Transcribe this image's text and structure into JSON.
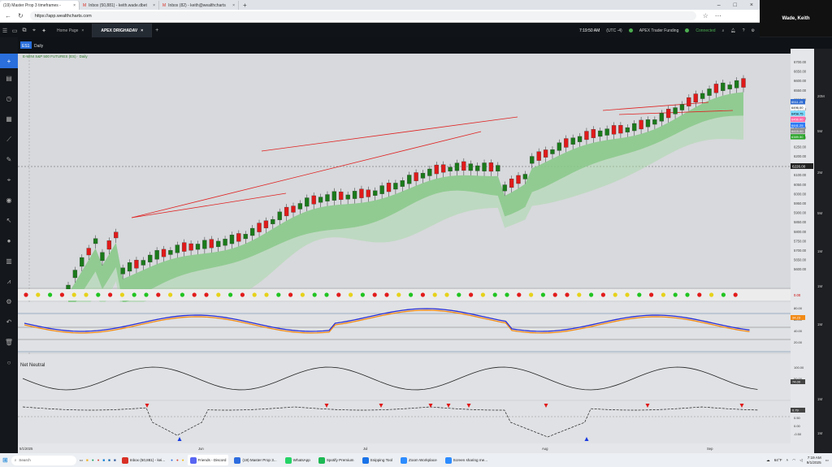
{
  "browser": {
    "tabs": [
      {
        "label": "(19) Master Prop 3 timeframes -",
        "active": true
      },
      {
        "label": "Inbox (50,881) - keith.wade.dbet",
        "active": false
      },
      {
        "label": "Inbox (82) - keith@wealthcharts",
        "active": false
      }
    ],
    "url": "https://app.wealthcharts.com"
  },
  "video_overlay": {
    "name": "Wade, Keith"
  },
  "app": {
    "tabs": [
      "Home Page",
      "APEX DRIGHADAV"
    ],
    "time": "7:19:50 AM",
    "timezone": "(UTC -4)",
    "status_funding": "APEX Trader Funding",
    "status_connected": "Connected"
  },
  "chart": {
    "symbol": "ES1",
    "timeframe": "Daily",
    "title": "E-MINI S&P 500 FUTURES (ES) · Daily",
    "panel_labels": {
      "net_neutral": "Net Neutral"
    },
    "price_axis": [
      "6700.00",
      "6650.00",
      "6600.00",
      "6550.00",
      "6500.00",
      "6450.00",
      "6400.00",
      "6350.00",
      "6300.00",
      "6250.00",
      "6200.00",
      "6150.00",
      "6100.00",
      "6050.00",
      "6000.00",
      "5950.00",
      "5900.00",
      "5850.00",
      "5800.00",
      "5750.00",
      "5700.00",
      "5650.00",
      "5600.00"
    ],
    "price_tags": [
      {
        "label": "6511.25",
        "color": "#2e6bd1"
      },
      {
        "label": "6496.00",
        "color": "#ffffff"
      },
      {
        "label": "6458.75",
        "color": "#7ad9ff"
      },
      {
        "label": "6456.00",
        "color": "#ff6aa8"
      },
      {
        "label": "6441.25",
        "color": "#2f7bf6"
      },
      {
        "label": "6415.00",
        "color": "#8f8f8f"
      },
      {
        "label": "6389.50",
        "color": "#29a329"
      }
    ],
    "crosshair_price": "6226.00",
    "right_labels": [
      "20M",
      "5M",
      "2M",
      "5M",
      "1M",
      "1M",
      "1M",
      "1M",
      "1M"
    ],
    "osc_values": {
      "dots": "0.00",
      "stoch": "34.23",
      "net": "74.00",
      "bottom": "0.79"
    },
    "osc_axis": [
      "80.00",
      "60.00",
      "40.00",
      "20.00"
    ],
    "osc2_axis": [
      "100.00",
      "50.00"
    ],
    "osc3_axis": [
      "1.00",
      "0.50",
      "0.00",
      "-0.50"
    ],
    "date_axis": [
      "5/1/2025",
      "Jun",
      "Jul",
      "Aug",
      "Sep"
    ]
  },
  "taskbar": {
    "search_placeholder": "Search",
    "apps": [
      {
        "label": "Inbox (50,881) - kei...",
        "color": "#d93025"
      },
      {
        "label": "Friends - Discord",
        "color": "#5865f2"
      },
      {
        "label": "(19) Master Prop 3...",
        "color": "#2d6cdf"
      },
      {
        "label": "WhatsApp",
        "color": "#25d366"
      },
      {
        "label": "Spotify Premium",
        "color": "#1db954"
      },
      {
        "label": "Snipping Tool",
        "color": "#1a73e8"
      },
      {
        "label": "Zoom Workplace",
        "color": "#2d8cff"
      },
      {
        "label": "Screen sharing me...",
        "color": "#2d8cff"
      }
    ],
    "weather": "64°F",
    "time": "7:19 AM",
    "date": "9/1/2025"
  }
}
